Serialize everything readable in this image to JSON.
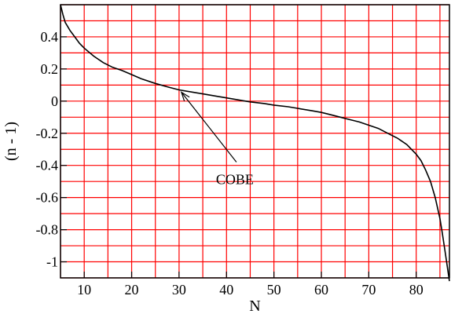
{
  "chart_data": {
    "type": "line",
    "title": "",
    "xlabel": "N",
    "ylabel": "(n - 1)",
    "xlim": [
      5,
      87
    ],
    "ylim": [
      -1.1,
      0.6
    ],
    "grid": true,
    "grid_color": "#ff0000",
    "line_color": "#000000",
    "x_gridlines": [
      5,
      10,
      15,
      20,
      25,
      30,
      35,
      40,
      45,
      50,
      55,
      60,
      65,
      70,
      75,
      80,
      85
    ],
    "y_gridlines": [
      -1.1,
      -1.0,
      -0.9,
      -0.8,
      -0.7,
      -0.6,
      -0.5,
      -0.4,
      -0.3,
      -0.2,
      -0.1,
      0.0,
      0.1,
      0.2,
      0.3,
      0.4,
      0.5,
      0.6
    ],
    "x_ticks": [
      10,
      20,
      30,
      40,
      50,
      60,
      70,
      80
    ],
    "x_tick_labels": [
      "10",
      "20",
      "30",
      "40",
      "50",
      "60",
      "70",
      "80"
    ],
    "y_ticks": [
      0.4,
      0.2,
      0.0,
      -0.2,
      -0.4,
      -0.6,
      -0.8,
      -1.0
    ],
    "y_tick_labels": [
      "0.4",
      "0.2",
      "0",
      "-0.2",
      "-0.4",
      "-0.6",
      "-0.8",
      "-1"
    ],
    "series": [
      {
        "x": [
          5,
          5.5,
          6,
          7,
          8,
          9,
          10,
          12,
          14,
          16,
          18,
          20,
          22,
          25,
          28,
          30,
          33,
          35,
          38,
          40,
          43,
          45,
          48,
          50,
          53,
          55,
          58,
          60,
          62,
          64,
          66,
          68,
          70,
          72,
          74,
          76,
          78,
          80,
          81,
          82,
          83,
          84,
          85,
          85.5,
          86,
          86.5,
          87
        ],
        "y": [
          0.6,
          0.54,
          0.49,
          0.44,
          0.4,
          0.36,
          0.33,
          0.28,
          0.24,
          0.21,
          0.19,
          0.165,
          0.14,
          0.11,
          0.085,
          0.07,
          0.055,
          0.045,
          0.03,
          0.02,
          0.005,
          -0.005,
          -0.015,
          -0.025,
          -0.035,
          -0.045,
          -0.06,
          -0.07,
          -0.085,
          -0.1,
          -0.115,
          -0.13,
          -0.15,
          -0.17,
          -0.2,
          -0.23,
          -0.27,
          -0.33,
          -0.37,
          -0.43,
          -0.5,
          -0.6,
          -0.73,
          -0.82,
          -0.92,
          -1.02,
          -1.12
        ]
      }
    ],
    "annotations": [
      {
        "text": "COBE",
        "x": 30,
        "y": 0.075
      }
    ]
  }
}
